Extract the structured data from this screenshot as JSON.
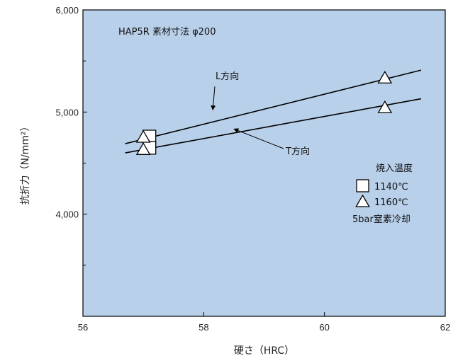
{
  "colors": {
    "plot_background": "#b9d0ea",
    "line": "#000000",
    "frame": "#000000"
  },
  "chart_data": {
    "type": "line",
    "title": "",
    "annotation_title": "HAP5R 素材寸法 φ200",
    "xlabel": "硬さ（HRC）",
    "ylabel": "抗折力（N/mm²）",
    "xlim": [
      56,
      62
    ],
    "ylim": [
      3000,
      6000
    ],
    "x_ticks": [
      "56",
      "58",
      "60",
      "62"
    ],
    "y_ticks": [
      "4,000",
      "5,000",
      "6,000"
    ],
    "grid": false,
    "series": [
      {
        "name": "L方向",
        "x": [
          56.7,
          61.6
        ],
        "values": [
          4690,
          5410
        ]
      },
      {
        "name": "T方向",
        "x": [
          56.7,
          61.6
        ],
        "values": [
          4600,
          5130
        ]
      }
    ],
    "points": [
      {
        "marker": "square",
        "x": 57.1,
        "y": 4760
      },
      {
        "marker": "square",
        "x": 57.1,
        "y": 4650
      },
      {
        "marker": "triangle",
        "x": 57.0,
        "y": 4760
      },
      {
        "marker": "triangle",
        "x": 57.0,
        "y": 4640
      },
      {
        "marker": "triangle",
        "x": 61.0,
        "y": 5340
      },
      {
        "marker": "triangle",
        "x": 61.0,
        "y": 5050
      }
    ],
    "legend": {
      "title": "焼入温度",
      "items": [
        {
          "marker": "square",
          "label": "1140℃"
        },
        {
          "marker": "triangle",
          "label": "1160℃"
        }
      ],
      "note": "5bar窒素冷却"
    }
  }
}
